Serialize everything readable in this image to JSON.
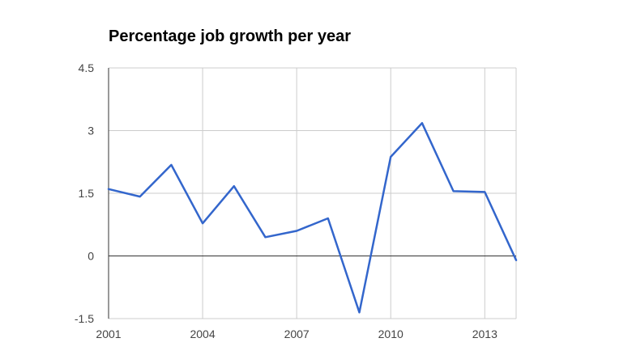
{
  "chart_data": {
    "type": "line",
    "title": "Percentage job growth per year",
    "xlabel": "",
    "ylabel": "",
    "x": [
      2001,
      2002,
      2003,
      2004,
      2005,
      2006,
      2007,
      2008,
      2009,
      2010,
      2011,
      2012,
      2013,
      2014
    ],
    "series": [
      {
        "values": [
          1.6,
          1.42,
          2.18,
          0.78,
          1.67,
          0.45,
          0.6,
          0.9,
          -1.35,
          2.37,
          3.18,
          1.55,
          1.53,
          -0.1
        ]
      }
    ],
    "xlim": [
      2001,
      2014
    ],
    "ylim": [
      -1.5,
      4.5
    ],
    "x_ticks": [
      "2001",
      "2004",
      "2007",
      "2010",
      "2013"
    ],
    "y_ticks": [
      "4.5",
      "3",
      "1.5",
      "0",
      "-1.5"
    ],
    "grid": true,
    "legend": "none",
    "colors": {
      "line": "#3366cc",
      "grid": "#cccccc",
      "zero_line": "#333333",
      "text": "#444444"
    }
  }
}
